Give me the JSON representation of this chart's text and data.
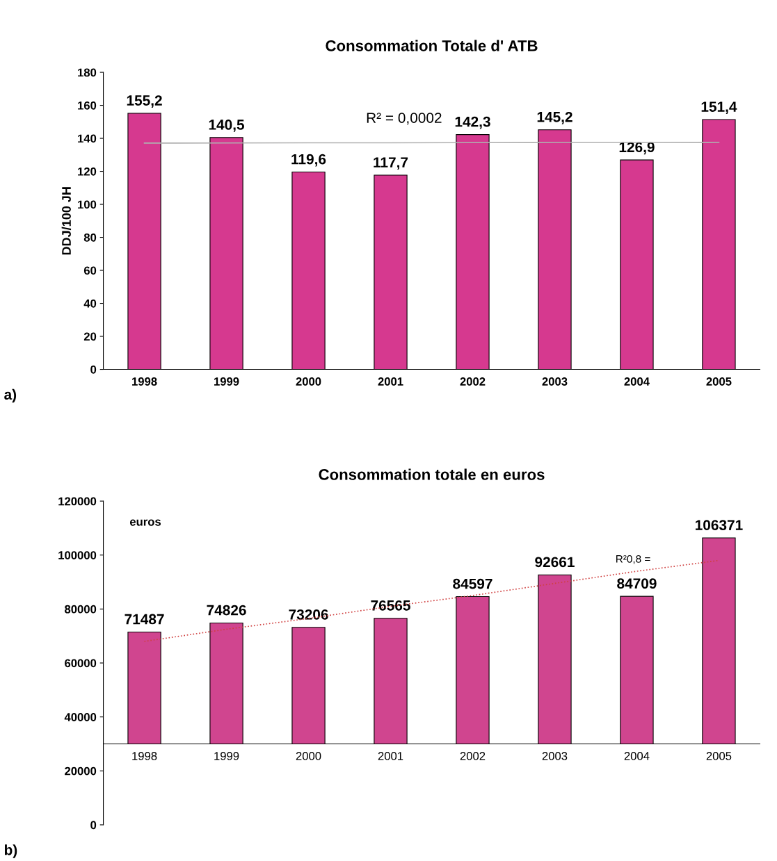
{
  "chart_data": [
    {
      "type": "bar",
      "title": "Consommation Totale d' ATB",
      "ylabel": "DDJ/100 JH",
      "categories": [
        "1998",
        "1999",
        "2000",
        "2001",
        "2002",
        "2003",
        "2004",
        "2005"
      ],
      "series": [
        {
          "color": "#d6398f",
          "values": [
            155.2,
            140.5,
            119.6,
            117.7,
            142.3,
            145.2,
            126.9,
            151.4
          ],
          "value_labels": [
            "155,2",
            "140,5",
            "119,6",
            "117,7",
            "142,3",
            "145,2",
            "126,9",
            "151,4"
          ]
        },
        {
          "type": "line",
          "color": "#b0b0b0",
          "line_style": "solid",
          "values": [
            137.1,
            137.2,
            137.3,
            137.3,
            137.4,
            137.5,
            137.5,
            137.6
          ]
        }
      ],
      "ylim": [
        0,
        180
      ],
      "yticks": [
        0,
        20,
        40,
        60,
        80,
        100,
        120,
        140,
        160,
        180
      ],
      "grid": false,
      "legend": false,
      "annotations": [
        "a)",
        "R² = 0,0002"
      ]
    },
    {
      "type": "bar",
      "title": "Consommation totale en euros",
      "categories": [
        "1998",
        "1999",
        "2000",
        "2001",
        "2002",
        "2003",
        "2004",
        "2005"
      ],
      "series": [
        {
          "color": "#d0458f",
          "base": [
            30000,
            30000,
            30000,
            30000,
            30000,
            30000,
            30000,
            30000
          ],
          "values": [
            41487,
            44826,
            43206,
            46565,
            54597,
            62661,
            54709,
            76371
          ],
          "value_labels": [
            "71487",
            "74826",
            "73206",
            "76565",
            "84597",
            "92661",
            "84709",
            "106371"
          ]
        },
        {
          "type": "line",
          "color": "#d04040",
          "line_style": "dotted",
          "values": [
            68000,
            72500,
            76500,
            81000,
            85000,
            89500,
            94000,
            98000
          ]
        }
      ],
      "ylim": [
        0,
        120000
      ],
      "yticks": [
        0,
        20000,
        40000,
        60000,
        80000,
        100000,
        120000
      ],
      "grid": false,
      "legend": false,
      "annotations": [
        "b)",
        "euros",
        "R²0,8 ="
      ]
    }
  ]
}
